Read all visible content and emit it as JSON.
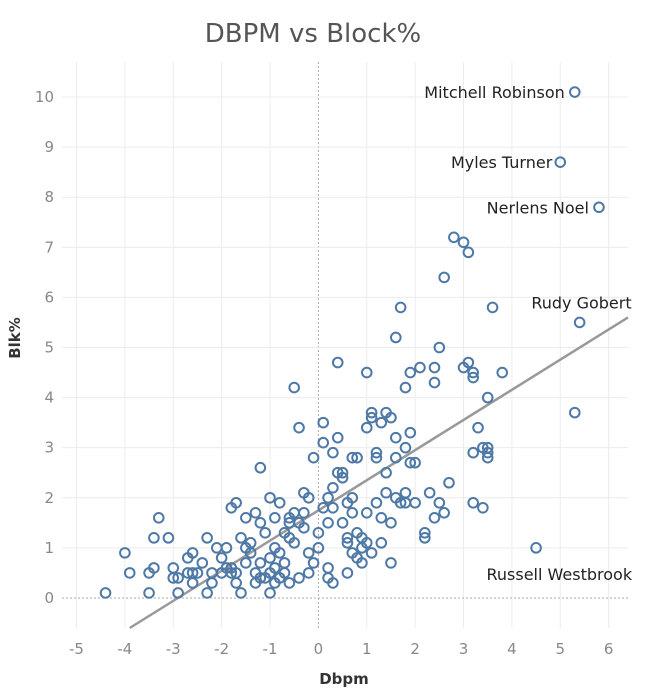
{
  "chart_data": {
    "type": "scatter",
    "title": "DBPM vs Block%",
    "xlabel": "Dbpm",
    "ylabel": "Blk%",
    "xlim": [
      -5.3,
      6.4
    ],
    "ylim": [
      -0.6,
      10.7
    ],
    "xticks": [
      -5,
      -4,
      -3,
      -2,
      -1,
      0,
      1,
      2,
      3,
      4,
      5,
      6
    ],
    "yticks": [
      0,
      1,
      2,
      3,
      4,
      5,
      6,
      7,
      8,
      9,
      10
    ],
    "grid": true,
    "color": "#4e79a7",
    "trend_line": {
      "x": [
        -3.9,
        6.4
      ],
      "y": [
        -0.6,
        5.6
      ],
      "color": "#999999"
    },
    "annotations": [
      {
        "text": "Mitchell Robinson",
        "x": 5.3,
        "y": 10.1
      },
      {
        "text": "Myles Turner",
        "x": 5.0,
        "y": 8.7
      },
      {
        "text": "Nerlens Noel",
        "x": 5.8,
        "y": 7.8
      },
      {
        "text": "Rudy Gobert",
        "x": 5.4,
        "y": 5.5
      },
      {
        "text": "Russell Westbrook",
        "x": 4.5,
        "y": 1.0
      }
    ],
    "points": [
      [
        -4.4,
        0.1
      ],
      [
        -4.0,
        0.9
      ],
      [
        -3.9,
        0.5
      ],
      [
        -3.5,
        0.1
      ],
      [
        -3.5,
        0.5
      ],
      [
        -3.4,
        0.6
      ],
      [
        -3.4,
        1.2
      ],
      [
        -3.3,
        1.6
      ],
      [
        -3.1,
        1.2
      ],
      [
        -3.0,
        0.6
      ],
      [
        -3.0,
        0.4
      ],
      [
        -2.9,
        0.1
      ],
      [
        -2.9,
        0.4
      ],
      [
        -2.7,
        0.5
      ],
      [
        -2.7,
        0.8
      ],
      [
        -2.6,
        0.9
      ],
      [
        -2.6,
        0.3
      ],
      [
        -2.6,
        0.5
      ],
      [
        -2.5,
        0.5
      ],
      [
        -2.4,
        0.7
      ],
      [
        -2.3,
        1.2
      ],
      [
        -2.3,
        0.1
      ],
      [
        -2.2,
        0.5
      ],
      [
        -2.2,
        0.3
      ],
      [
        -2.1,
        1.0
      ],
      [
        -2.0,
        0.8
      ],
      [
        -2.0,
        0.5
      ],
      [
        -1.9,
        0.6
      ],
      [
        -1.9,
        1.0
      ],
      [
        -1.8,
        0.6
      ],
      [
        -1.8,
        0.5
      ],
      [
        -1.7,
        0.5
      ],
      [
        -1.7,
        0.3
      ],
      [
        -1.6,
        1.2
      ],
      [
        -1.6,
        0.1
      ],
      [
        -1.5,
        0.7
      ],
      [
        -1.5,
        1.0
      ],
      [
        -1.4,
        1.1
      ],
      [
        -1.4,
        0.9
      ],
      [
        -1.3,
        0.3
      ],
      [
        -1.3,
        0.5
      ],
      [
        -1.2,
        1.5
      ],
      [
        -1.2,
        0.7
      ],
      [
        -1.2,
        0.4
      ],
      [
        -1.1,
        1.3
      ],
      [
        -1.1,
        0.4
      ],
      [
        -1.0,
        0.1
      ],
      [
        -1.0,
        0.5
      ],
      [
        -1.0,
        0.8
      ],
      [
        -1.0,
        2.0
      ],
      [
        -0.9,
        1.0
      ],
      [
        -0.9,
        0.6
      ],
      [
        -0.9,
        0.3
      ],
      [
        -0.8,
        0.9
      ],
      [
        -0.8,
        0.4
      ],
      [
        -0.7,
        1.3
      ],
      [
        -0.7,
        0.5
      ],
      [
        -0.7,
        0.7
      ],
      [
        -0.6,
        1.5
      ],
      [
        -0.6,
        0.3
      ],
      [
        -0.6,
        1.2
      ],
      [
        -0.5,
        4.2
      ],
      [
        -0.5,
        1.7
      ],
      [
        -0.5,
        1.1
      ],
      [
        -0.4,
        1.5
      ],
      [
        -0.4,
        3.4
      ],
      [
        -0.4,
        0.4
      ],
      [
        -0.3,
        1.4
      ],
      [
        -0.3,
        2.1
      ],
      [
        -0.2,
        0.9
      ],
      [
        -0.2,
        0.5
      ],
      [
        -0.1,
        0.7
      ],
      [
        -0.1,
        2.8
      ],
      [
        0.0,
        1.3
      ],
      [
        0.0,
        1.0
      ],
      [
        0.1,
        3.5
      ],
      [
        0.1,
        3.1
      ],
      [
        0.2,
        0.6
      ],
      [
        0.2,
        0.4
      ],
      [
        0.2,
        1.5
      ],
      [
        0.3,
        0.3
      ],
      [
        0.3,
        1.8
      ],
      [
        0.3,
        2.2
      ],
      [
        0.4,
        2.5
      ],
      [
        0.4,
        3.2
      ],
      [
        0.4,
        4.7
      ],
      [
        0.5,
        2.4
      ],
      [
        0.5,
        1.5
      ],
      [
        0.6,
        1.1
      ],
      [
        0.6,
        1.2
      ],
      [
        0.6,
        0.5
      ],
      [
        0.7,
        0.9
      ],
      [
        0.7,
        1.7
      ],
      [
        0.7,
        2.0
      ],
      [
        0.8,
        1.3
      ],
      [
        0.8,
        2.8
      ],
      [
        0.8,
        0.8
      ],
      [
        0.9,
        1.0
      ],
      [
        0.9,
        0.7
      ],
      [
        1.0,
        4.5
      ],
      [
        1.0,
        3.4
      ],
      [
        1.0,
        1.1
      ],
      [
        1.1,
        3.7
      ],
      [
        1.1,
        3.6
      ],
      [
        1.1,
        0.9
      ],
      [
        1.2,
        2.8
      ],
      [
        1.2,
        1.9
      ],
      [
        1.3,
        1.1
      ],
      [
        1.3,
        3.5
      ],
      [
        1.4,
        2.5
      ],
      [
        1.4,
        3.7
      ],
      [
        1.5,
        3.6
      ],
      [
        1.5,
        0.7
      ],
      [
        1.5,
        1.5
      ],
      [
        1.6,
        5.2
      ],
      [
        1.6,
        3.2
      ],
      [
        1.6,
        2.0
      ],
      [
        1.7,
        5.8
      ],
      [
        1.7,
        1.9
      ],
      [
        1.8,
        4.2
      ],
      [
        1.8,
        3.0
      ],
      [
        1.8,
        2.1
      ],
      [
        1.9,
        4.5
      ],
      [
        1.9,
        3.3
      ],
      [
        1.9,
        2.7
      ],
      [
        2.0,
        1.9
      ],
      [
        2.1,
        4.6
      ],
      [
        2.2,
        1.3
      ],
      [
        2.2,
        1.2
      ],
      [
        2.3,
        2.1
      ],
      [
        2.4,
        4.6
      ],
      [
        2.4,
        4.3
      ],
      [
        2.4,
        1.6
      ],
      [
        2.5,
        5.0
      ],
      [
        2.6,
        6.4
      ],
      [
        2.6,
        1.7
      ],
      [
        2.7,
        2.3
      ],
      [
        2.8,
        7.2
      ],
      [
        3.0,
        7.1
      ],
      [
        3.0,
        4.6
      ],
      [
        3.1,
        6.9
      ],
      [
        3.1,
        4.7
      ],
      [
        3.2,
        4.5
      ],
      [
        3.2,
        4.4
      ],
      [
        3.2,
        2.9
      ],
      [
        3.2,
        1.9
      ],
      [
        3.3,
        3.4
      ],
      [
        3.4,
        3.0
      ],
      [
        3.4,
        1.8
      ],
      [
        3.5,
        3.0
      ],
      [
        3.5,
        2.8
      ],
      [
        3.5,
        2.9
      ],
      [
        3.5,
        4.0
      ],
      [
        3.6,
        5.8
      ],
      [
        3.8,
        4.5
      ],
      [
        4.5,
        1.0
      ],
      [
        5.0,
        8.7
      ],
      [
        5.3,
        10.1
      ],
      [
        5.3,
        3.7
      ],
      [
        5.4,
        5.5
      ],
      [
        5.8,
        7.8
      ],
      [
        -1.8,
        1.8
      ],
      [
        -1.7,
        1.9
      ],
      [
        -1.5,
        1.6
      ],
      [
        -1.3,
        1.7
      ],
      [
        -1.2,
        2.6
      ],
      [
        -0.9,
        1.6
      ],
      [
        -0.8,
        1.9
      ],
      [
        -0.6,
        1.6
      ],
      [
        -0.3,
        1.7
      ],
      [
        -0.2,
        2.0
      ],
      [
        0.1,
        1.8
      ],
      [
        0.2,
        2.0
      ],
      [
        0.3,
        2.9
      ],
      [
        0.5,
        2.5
      ],
      [
        0.6,
        1.9
      ],
      [
        0.7,
        2.8
      ],
      [
        0.9,
        1.2
      ],
      [
        1.0,
        1.7
      ],
      [
        1.2,
        2.9
      ],
      [
        1.3,
        1.6
      ],
      [
        1.4,
        2.1
      ],
      [
        1.6,
        2.8
      ],
      [
        1.8,
        1.9
      ],
      [
        2.0,
        2.7
      ],
      [
        2.5,
        1.9
      ]
    ]
  }
}
